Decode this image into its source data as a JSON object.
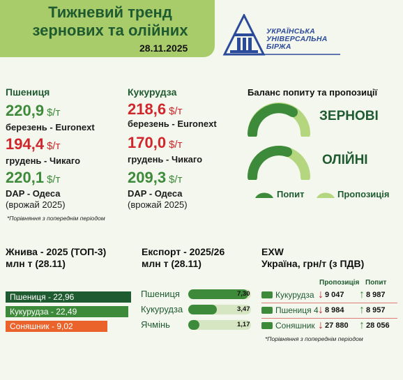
{
  "header": {
    "title_line1": "Тижневий тренд",
    "title_line2": "зернових та олійних",
    "date": "28.11.2025"
  },
  "logo": {
    "line1": "УКРАЇНСЬКА",
    "line2": "УНІВЕРСАЛЬНА",
    "line3": "БІРЖА",
    "icon": "ukrainian-universal-exchange-logo"
  },
  "wheat": {
    "name": "Пшениця",
    "p1": "220,9",
    "p1_label": "березень - Euronext",
    "p1_color": "#3d8a3a",
    "p2": "194,4",
    "p2_label": "грудень - Чикаго",
    "p2_color": "#d0262b",
    "p3": "220,1",
    "p3_label": "DAP - Одеса",
    "p3_sub": "(врожай 2025)",
    "p3_color": "#3d8a3a"
  },
  "corn": {
    "name": "Кукурудза",
    "p1": "218,6",
    "p1_label": "березень - Euronext",
    "p1_color": "#d0262b",
    "p2": "170,0",
    "p2_label": "грудень - Чикаго",
    "p2_color": "#d0262b",
    "p3": "209,3",
    "p3_label": "DAP - Одеса",
    "p3_sub": "(врожай 2025)",
    "p3_color": "#3d8a3a"
  },
  "unit": "$/т",
  "note": "*Порівняння з попереднім періодом",
  "balance": {
    "title": "Баланс попиту та пропозиції",
    "grain_label": "ЗЕРНОВІ",
    "oil_label": "ОЛІЙНІ",
    "legend_demand": "Попит",
    "legend_supply": "Пропозиція",
    "demand_color": "#3d8a3a",
    "supply_color": "#b4d67e"
  },
  "harvest": {
    "title1": "Жнива - 2025 (ТОП-3)",
    "title2": "млн т (28.11)",
    "items": [
      {
        "label": "Пшениця - 22,96",
        "color": "#1f5b30"
      },
      {
        "label": "Кукурудза - 22,49",
        "color": "#3d8a3a"
      },
      {
        "label": "Соняшник - 9,02",
        "color": "#e9632b"
      }
    ]
  },
  "export": {
    "title1": "Експорт - 2025/26",
    "title2": "млн т (28.11)",
    "items": [
      {
        "label": "Пшениця",
        "value": "7,30",
        "num": 7.3
      },
      {
        "label": "Кукурудза",
        "value": "3,47",
        "num": 3.47
      },
      {
        "label": "Ячмінь",
        "value": "1,17",
        "num": 1.17
      }
    ]
  },
  "exw": {
    "title1": "EXW",
    "title2": "Україна, грн/т (з ПДВ)",
    "col_supply": "Пропозиція",
    "col_demand": "Попит",
    "rows": [
      {
        "label": "Кукурудза",
        "supply": "9 047",
        "supply_dir": "down",
        "demand": "8 987",
        "demand_dir": "up"
      },
      {
        "label": "Пшениця 4",
        "supply": "8 984",
        "supply_dir": "down",
        "demand": "8 957",
        "demand_dir": "up"
      },
      {
        "label": "Соняшник",
        "supply": "27 880",
        "supply_dir": "down",
        "demand": "28 056",
        "demand_dir": "up"
      }
    ],
    "note": "*Порівняння з попереднім періодом"
  }
}
